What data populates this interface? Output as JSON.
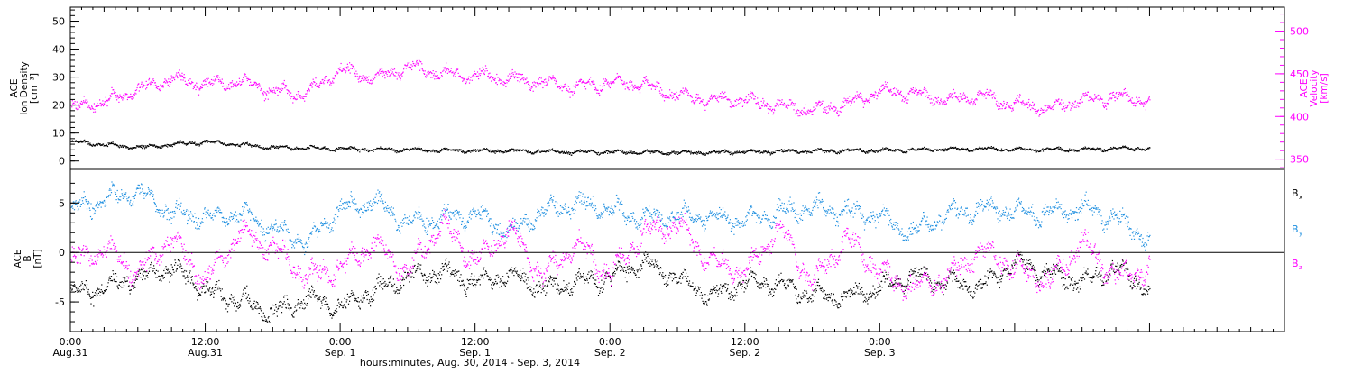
{
  "colors": {
    "axis": "#000000",
    "density": "#000000",
    "velocity": "#ff00ff",
    "bx": "#000000",
    "by": "#1e8fe0",
    "bz": "#ff00ff"
  },
  "chart_data": [
    {
      "type": "scatter",
      "panel": "plasma",
      "left_axis": {
        "label_lines": [
          "ACE",
          "Ion Density",
          "[cm⁻³]"
        ],
        "ticks": [
          0,
          10,
          20,
          30,
          40,
          50
        ],
        "range": [
          -3,
          55
        ]
      },
      "right_axis": {
        "label_lines": [
          "ACE",
          "Velocity",
          "[km/s]"
        ],
        "ticks": [
          350,
          400,
          450,
          500
        ],
        "range": [
          338,
          528
        ]
      },
      "series": [
        {
          "name": "Ion Density",
          "axis": "left",
          "color": "#000000",
          "x": [
            0,
            3,
            6,
            9,
            12,
            15,
            18,
            21,
            24,
            27,
            30,
            33,
            36,
            39,
            42,
            45,
            48,
            51,
            54,
            57,
            60,
            63,
            66,
            69,
            72,
            75,
            78,
            81,
            84,
            87,
            90,
            93,
            96
          ],
          "y": [
            7,
            6,
            5,
            6,
            7,
            6,
            5,
            4.8,
            4.5,
            4.3,
            4.2,
            4,
            3.8,
            3.8,
            3.6,
            3.4,
            3.4,
            3.3,
            3.2,
            3.2,
            3.4,
            3.6,
            3.7,
            3.9,
            4,
            4.2,
            4.4,
            4.5,
            4.3,
            4.2,
            4.3,
            4.6,
            4.8
          ]
        },
        {
          "name": "Velocity",
          "axis": "right",
          "color": "#ff00ff",
          "x": [
            0,
            3,
            6,
            9,
            12,
            15,
            18,
            21,
            24,
            27,
            30,
            33,
            36,
            39,
            42,
            45,
            48,
            51,
            54,
            57,
            60,
            63,
            66,
            69,
            72,
            75,
            78,
            81,
            84,
            87,
            90,
            93,
            96
          ],
          "y": [
            410,
            418,
            432,
            445,
            438,
            442,
            430,
            428,
            455,
            445,
            458,
            450,
            448,
            445,
            440,
            435,
            440,
            438,
            425,
            420,
            420,
            412,
            408,
            415,
            430,
            428,
            420,
            425,
            415,
            410,
            420,
            424,
            418
          ]
        }
      ]
    },
    {
      "type": "scatter",
      "panel": "magnetic field",
      "left_axis": {
        "label_lines": [
          "ACE",
          "B",
          "[nT]"
        ],
        "ticks": [
          -5,
          0,
          5
        ],
        "range": [
          -8,
          8.4
        ]
      },
      "zero_line": true,
      "legend": [
        "Bx",
        "By",
        "Bz"
      ],
      "series": [
        {
          "name": "Bx",
          "color": "#000000",
          "x": [
            0,
            3,
            6,
            9,
            12,
            15,
            18,
            21,
            24,
            27,
            30,
            33,
            36,
            39,
            42,
            45,
            48,
            51,
            54,
            57,
            60,
            63,
            66,
            69,
            72,
            75,
            78,
            81,
            84,
            87,
            90,
            93,
            96
          ],
          "y": [
            -4.2,
            -3.5,
            -2.5,
            -1.5,
            -3.8,
            -4.8,
            -6.2,
            -4.5,
            -5.5,
            -3.8,
            -2.5,
            -1.8,
            -3,
            -2.2,
            -3.5,
            -3,
            -2.5,
            -1,
            -2.5,
            -4.5,
            -3,
            -3.2,
            -4.2,
            -4.5,
            -3.5,
            -2.5,
            -3,
            -3.5,
            -1,
            -2,
            -3,
            -1.5,
            -3.8
          ]
        },
        {
          "name": "By",
          "color": "#1e8fe0",
          "x": [
            0,
            3,
            6,
            9,
            12,
            15,
            18,
            21,
            24,
            27,
            30,
            33,
            36,
            39,
            42,
            45,
            48,
            51,
            54,
            57,
            60,
            63,
            66,
            69,
            72,
            75,
            78,
            81,
            84,
            87,
            90,
            93,
            96
          ],
          "y": [
            4.2,
            5.5,
            6.2,
            4,
            3.5,
            4,
            2.5,
            1,
            4.5,
            5.2,
            3,
            3.5,
            4,
            2,
            4.2,
            5,
            4.5,
            3.5,
            3.8,
            3.5,
            3.2,
            4,
            4.5,
            4.2,
            3.5,
            2,
            4,
            4.5,
            4.2,
            4,
            4.5,
            3.5,
            1.2
          ]
        },
        {
          "name": "Bz",
          "color": "#ff00ff",
          "x": [
            0,
            3,
            6,
            9,
            12,
            15,
            18,
            21,
            24,
            27,
            30,
            33,
            36,
            39,
            42,
            45,
            48,
            51,
            54,
            57,
            60,
            63,
            66,
            69,
            72,
            75,
            78,
            81,
            84,
            87,
            90,
            93,
            96
          ],
          "y": [
            -1,
            0.5,
            -2,
            1.5,
            -3,
            2,
            0.5,
            -2.5,
            -1.5,
            1,
            -2,
            3,
            -1,
            2.5,
            -2.5,
            1,
            -2.2,
            2,
            3,
            -1,
            -2,
            2.5,
            -3,
            1.5,
            -2,
            -3.5,
            -2.5,
            0.5,
            -1.5,
            -3,
            1,
            -2.5,
            -1.5
          ]
        }
      ]
    }
  ],
  "x_axis": {
    "range_hours": [
      0,
      108
    ],
    "tick_labels": [
      {
        "hours": 0,
        "time": "0:00",
        "date": "Aug.31"
      },
      {
        "hours": 12,
        "time": "12:00",
        "date": "Aug.31"
      },
      {
        "hours": 24,
        "time": "0:00",
        "date": "Sep. 1"
      },
      {
        "hours": 36,
        "time": "12:00",
        "date": "Sep. 1"
      },
      {
        "hours": 48,
        "time": "0:00",
        "date": "Sep. 2"
      },
      {
        "hours": 60,
        "time": "12:00",
        "date": "Sep. 2"
      },
      {
        "hours": 72,
        "time": "0:00",
        "date": "Sep. 3"
      }
    ],
    "title": "hours:minutes, Aug. 30, 2014 - Sep.  3, 2014"
  }
}
